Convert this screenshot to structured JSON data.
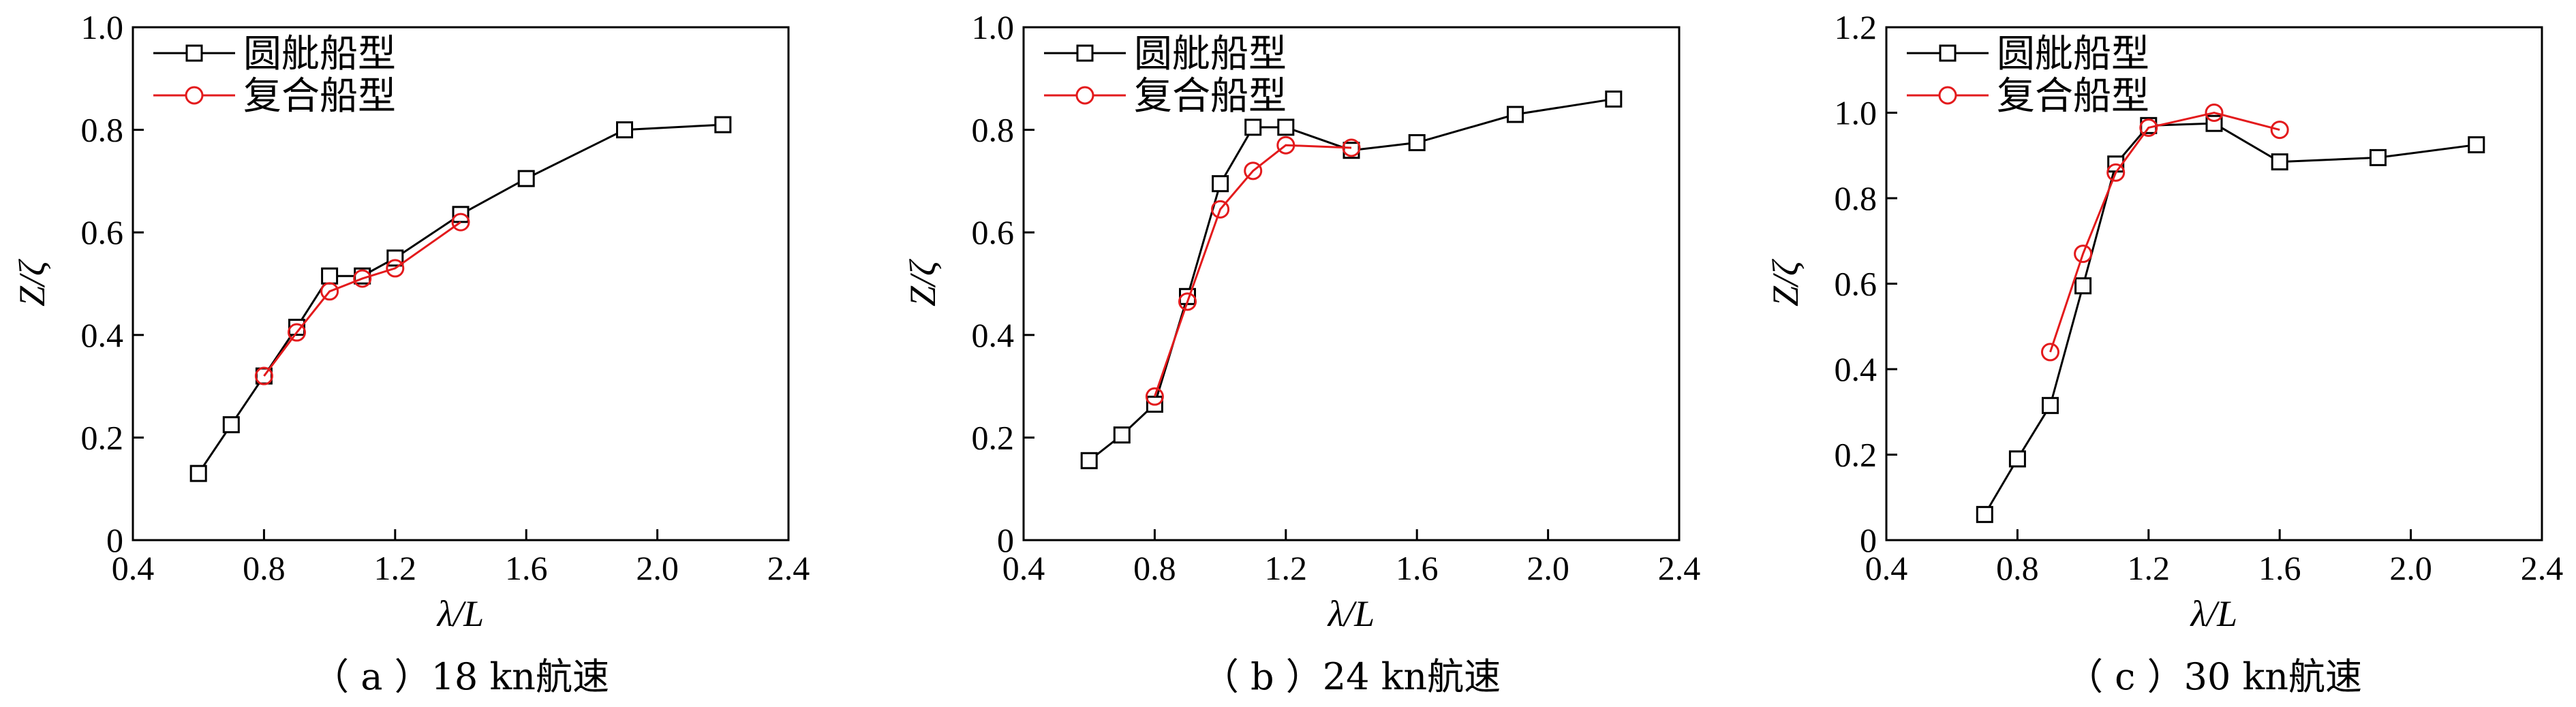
{
  "colors": {
    "series1": "#000000",
    "series2": "#e31a1c"
  },
  "chart_data": [
    {
      "type": "line",
      "caption": "（ a ）18 kn航速",
      "xlabel": "λ/L",
      "ylabel": "Z/ζ",
      "xlim": [
        0.4,
        2.4
      ],
      "ylim": [
        0,
        1.0
      ],
      "xticks": [
        "0.4",
        "0.8",
        "1.2",
        "1.6",
        "2.0",
        "2.4"
      ],
      "yticks": [
        "0",
        "0.2",
        "0.4",
        "0.6",
        "0.8",
        "1.0"
      ],
      "legend": [
        "圆舭船型",
        "复合船型"
      ],
      "series": [
        {
          "name": "圆舭船型",
          "marker": "square",
          "color": "#000000",
          "x": [
            0.6,
            0.7,
            0.8,
            0.9,
            1.0,
            1.1,
            1.2,
            1.4,
            1.6,
            1.9,
            2.2
          ],
          "y": [
            0.13,
            0.225,
            0.32,
            0.415,
            0.515,
            0.515,
            0.55,
            0.635,
            0.705,
            0.8,
            0.81
          ]
        },
        {
          "name": "复合船型",
          "marker": "circle",
          "color": "#e31a1c",
          "x": [
            0.8,
            0.9,
            1.0,
            1.1,
            1.2,
            1.4
          ],
          "y": [
            0.32,
            0.405,
            0.485,
            0.51,
            0.53,
            0.62
          ]
        }
      ]
    },
    {
      "type": "line",
      "caption": "（ b ）24 kn航速",
      "xlabel": "λ/L",
      "ylabel": "Z/ζ",
      "xlim": [
        0.4,
        2.4
      ],
      "ylim": [
        0,
        1.0
      ],
      "xticks": [
        "0.4",
        "0.8",
        "1.2",
        "1.6",
        "2.0",
        "2.4"
      ],
      "yticks": [
        "0",
        "0.2",
        "0.4",
        "0.6",
        "0.8",
        "1.0"
      ],
      "legend": [
        "圆舭船型",
        "复合船型"
      ],
      "series": [
        {
          "name": "圆舭船型",
          "marker": "square",
          "color": "#000000",
          "x": [
            0.6,
            0.7,
            0.8,
            0.9,
            1.0,
            1.1,
            1.2,
            1.4,
            1.6,
            1.9,
            2.2
          ],
          "y": [
            0.155,
            0.205,
            0.265,
            0.475,
            0.695,
            0.805,
            0.805,
            0.76,
            0.775,
            0.83,
            0.86
          ]
        },
        {
          "name": "复合船型",
          "marker": "circle",
          "color": "#e31a1c",
          "x": [
            0.8,
            0.9,
            1.0,
            1.1,
            1.2,
            1.4
          ],
          "y": [
            0.28,
            0.465,
            0.645,
            0.72,
            0.77,
            0.765
          ]
        }
      ]
    },
    {
      "type": "line",
      "caption": "（ c ）30 kn航速",
      "xlabel": "λ/L",
      "ylabel": "Z/ζ",
      "xlim": [
        0.4,
        2.4
      ],
      "ylim": [
        0,
        1.2
      ],
      "xticks": [
        "0.4",
        "0.8",
        "1.2",
        "1.6",
        "2.0",
        "2.4"
      ],
      "yticks": [
        "0",
        "0.2",
        "0.4",
        "0.6",
        "0.8",
        "1.0",
        "1.2"
      ],
      "legend": [
        "圆舭船型",
        "复合船型"
      ],
      "series": [
        {
          "name": "圆舭船型",
          "marker": "square",
          "color": "#000000",
          "x": [
            0.7,
            0.8,
            0.9,
            1.0,
            1.1,
            1.2,
            1.4,
            1.6,
            1.9,
            2.2
          ],
          "y": [
            0.06,
            0.19,
            0.315,
            0.595,
            0.88,
            0.97,
            0.975,
            0.885,
            0.895,
            0.925
          ]
        },
        {
          "name": "复合船型",
          "marker": "circle",
          "color": "#e31a1c",
          "x": [
            0.9,
            1.0,
            1.1,
            1.2,
            1.4,
            1.6
          ],
          "y": [
            0.44,
            0.67,
            0.86,
            0.965,
            1.0,
            0.96
          ]
        }
      ]
    }
  ]
}
